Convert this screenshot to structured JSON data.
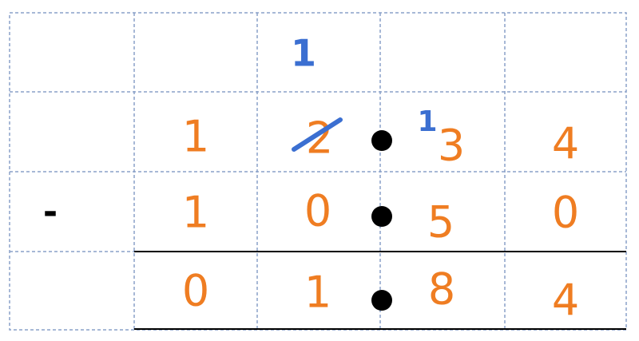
{
  "colors": {
    "digit": "#ef7d22",
    "borrow": "#3b6fd1",
    "grid": "#8aa0c8"
  },
  "carry_row": {
    "borrow_tens": "1"
  },
  "minuend": {
    "tens": "1",
    "ones": "2",
    "tenths_borrow": "1",
    "tenths": "3",
    "hundredths": "4"
  },
  "subtrahend": {
    "operator": "-",
    "tens": "1",
    "ones": "0",
    "tenths": "5",
    "hundredths": "0"
  },
  "result": {
    "tens": "0",
    "ones": "1",
    "tenths": "8",
    "hundredths": "4"
  }
}
